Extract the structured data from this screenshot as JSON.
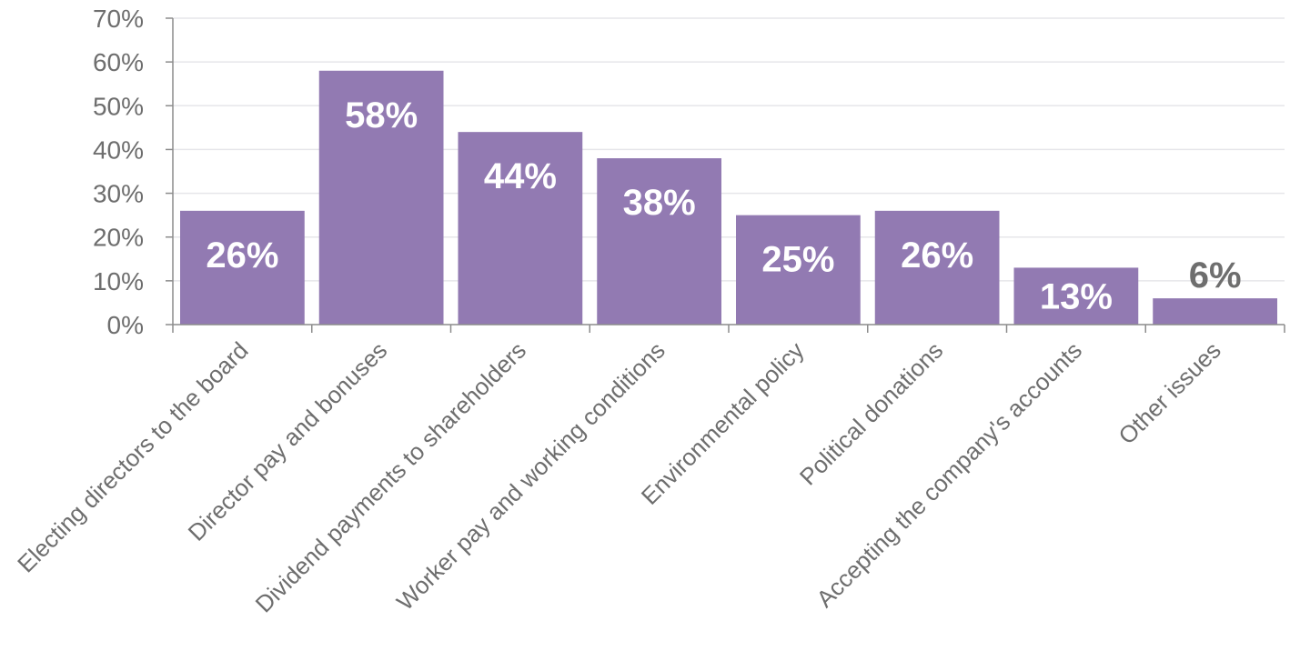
{
  "chart_data": {
    "type": "bar",
    "title": "",
    "xlabel": "",
    "ylabel": "",
    "categories": [
      "Electing directors to the board",
      "Director pay and bonuses",
      "Dividend payments to shareholders",
      "Worker pay and working conditions",
      "Environmental policy",
      "Political donations",
      "Accepting the company's accounts",
      "Other issues"
    ],
    "values": [
      26,
      58,
      44,
      38,
      25,
      26,
      13,
      6
    ],
    "data_labels": [
      "26%",
      "58%",
      "44%",
      "38%",
      "25%",
      "26%",
      "13%",
      "6%"
    ],
    "ylim": [
      0,
      70
    ],
    "yticks": [
      0,
      10,
      20,
      30,
      40,
      50,
      60,
      70
    ],
    "ytick_labels": [
      "0%",
      "10%",
      "20%",
      "30%",
      "40%",
      "50%",
      "60%",
      "70%"
    ],
    "grid": true,
    "legend": "none",
    "colors": {
      "bar": "#927ab2",
      "label_inside": "#ffffff",
      "label_outside": "#6e6e6e"
    }
  }
}
